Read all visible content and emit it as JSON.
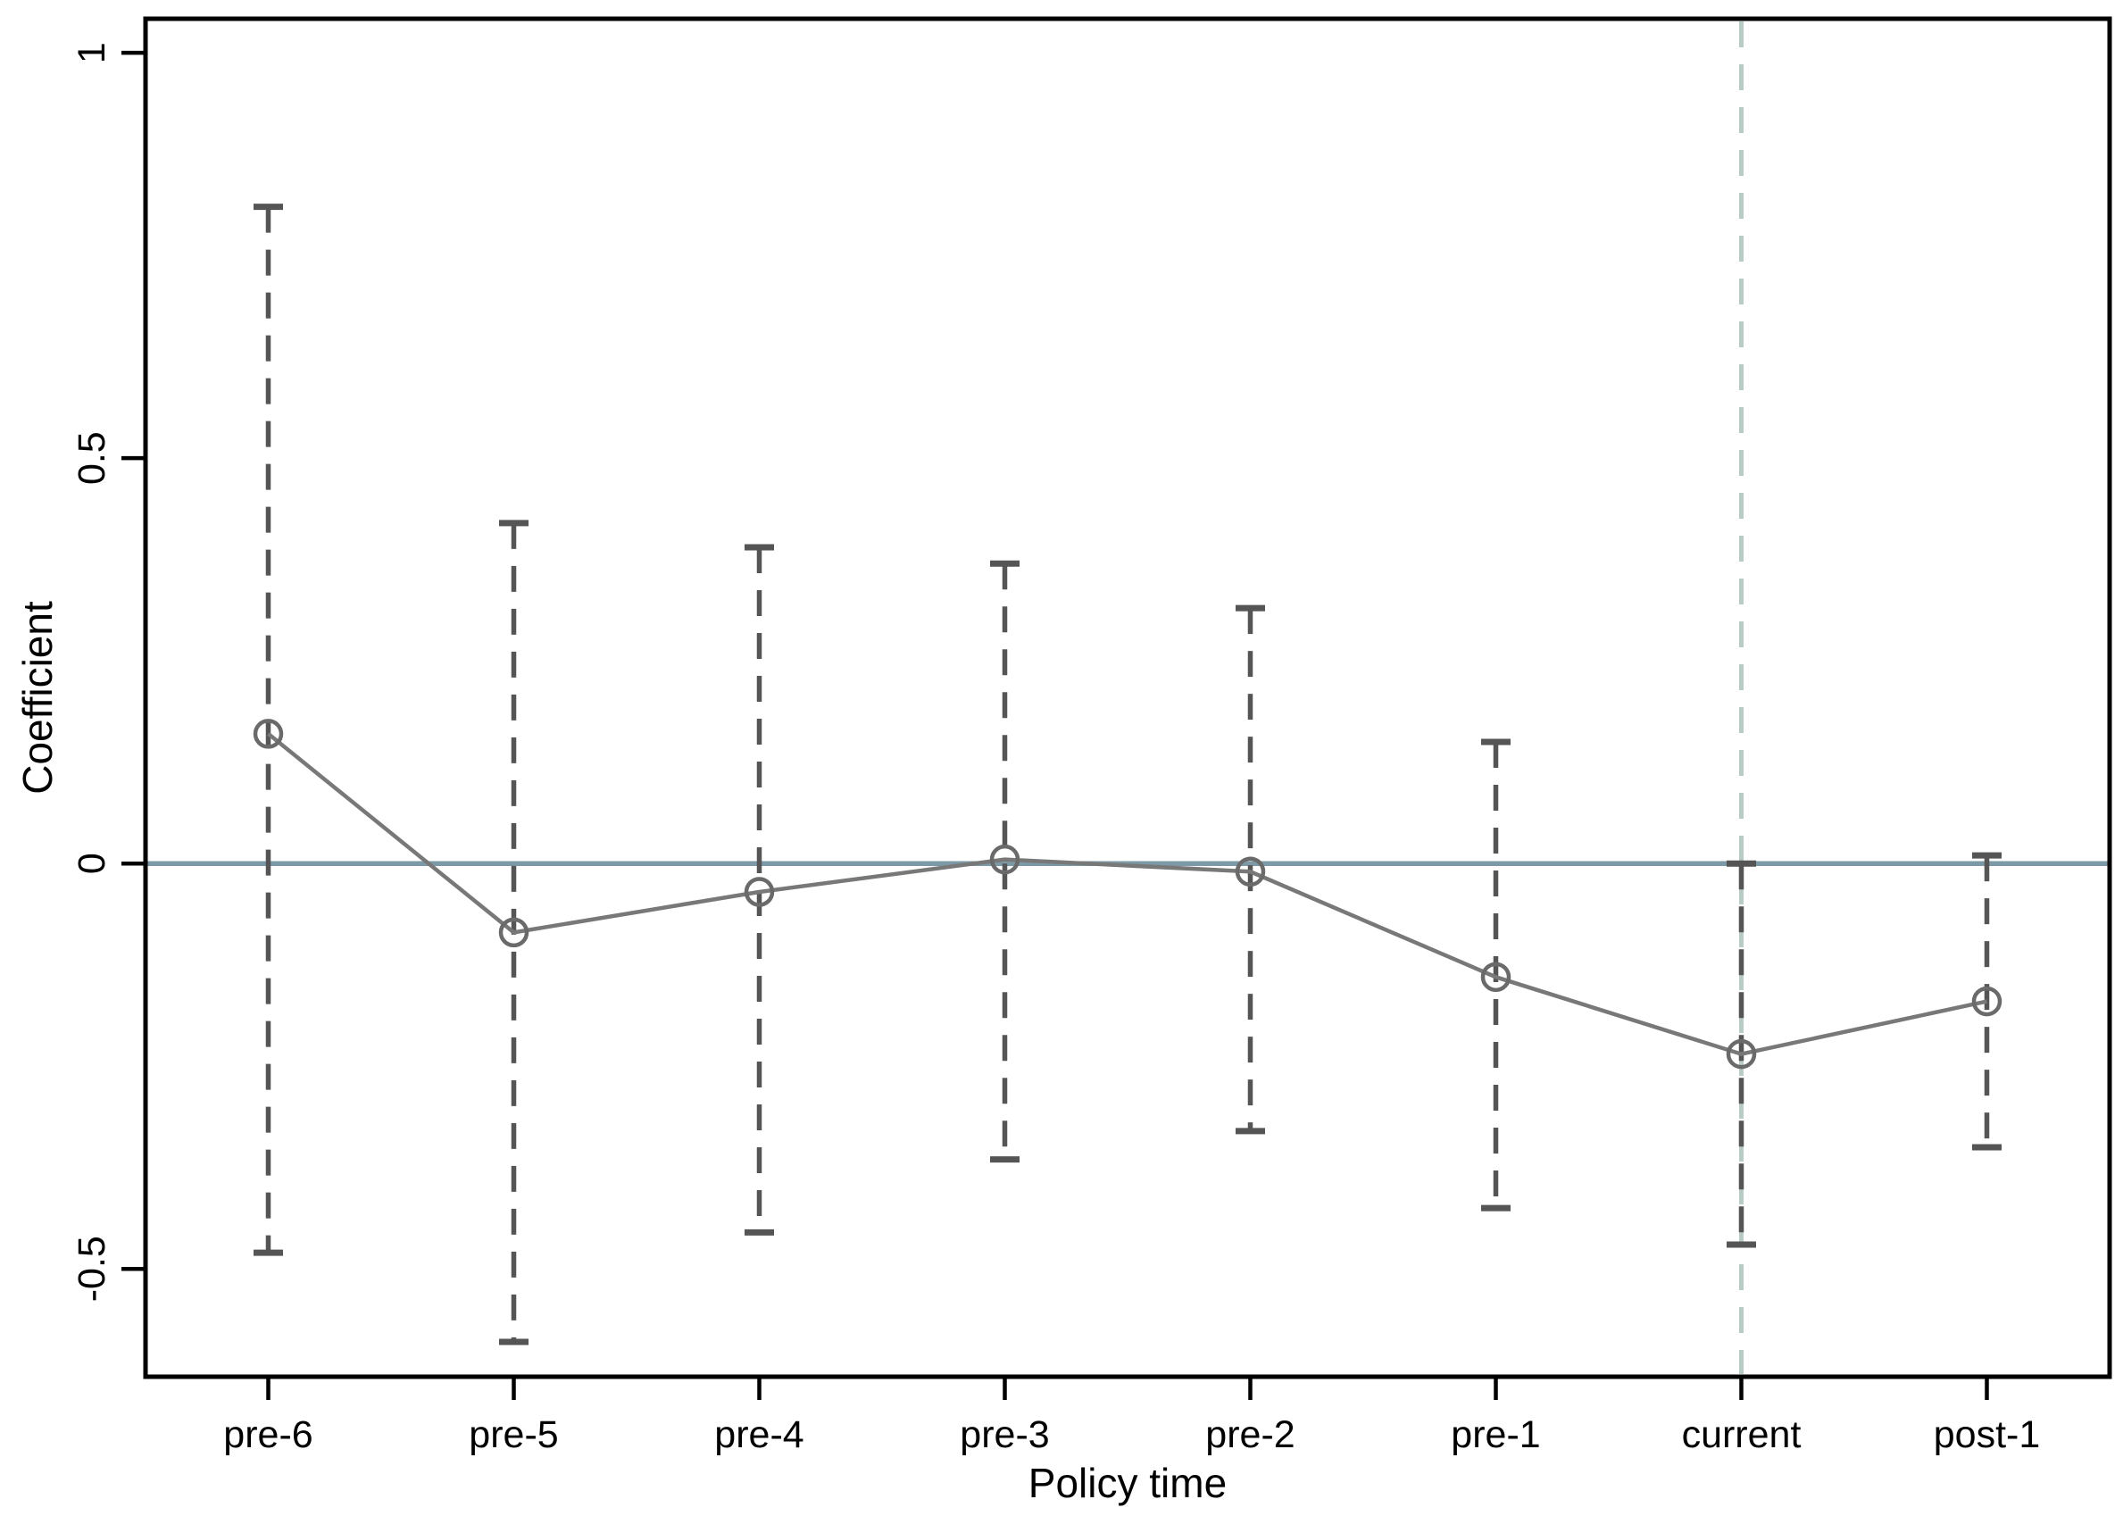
{
  "figure": {
    "kind": "event-study coefficient plot",
    "background": "#ffffff"
  },
  "chart_data": {
    "type": "line",
    "subtype": "coefficients-with-confidence-intervals",
    "title": "",
    "xlabel": "Policy time",
    "ylabel": "Coefficient",
    "categories": [
      "pre-6",
      "pre-5",
      "pre-4",
      "pre-3",
      "pre-2",
      "pre-1",
      "current",
      "post-1"
    ],
    "series": [
      {
        "name": "coefficient",
        "values": [
          0.16,
          -0.085,
          -0.035,
          0.005,
          -0.01,
          -0.14,
          -0.235,
          -0.17
        ]
      }
    ],
    "ci_high": [
      0.81,
      0.42,
      0.39,
      0.37,
      0.315,
      0.15,
      0.0,
      0.01
    ],
    "ci_low": [
      -0.48,
      -0.59,
      -0.455,
      -0.365,
      -0.33,
      -0.425,
      -0.47,
      -0.35
    ],
    "ytick_labels": [
      "1",
      "0.5",
      "0",
      "-0.5"
    ],
    "ytick_values": [
      1,
      0.5,
      0,
      -0.5
    ],
    "ylim": [
      -0.633,
      1.042
    ],
    "zero_line_y": 0,
    "reference_line_at": "current",
    "grid": false,
    "legend_position": "none",
    "marker_style": "hollow-circle",
    "error_bar_style": "dashed-with-caps",
    "colors": {
      "zero_line": "#7d99a6",
      "reference_line": "#b9cbc5",
      "error_bar": "#555555",
      "series_line": "#787878",
      "marker_stroke": "#6a6a6a",
      "axis": "#000000",
      "text": "#000000",
      "background": "#ffffff"
    }
  }
}
